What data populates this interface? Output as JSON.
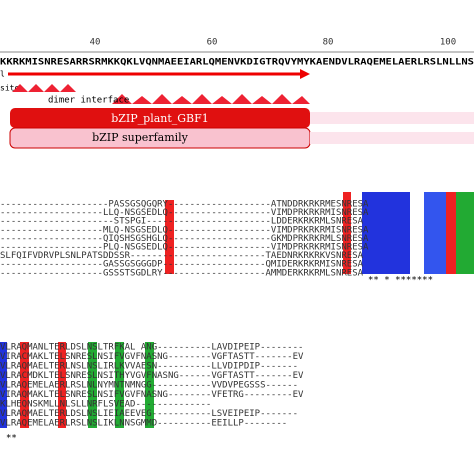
{
  "ruler": [
    "40",
    "60",
    "80",
    "100"
  ],
  "query": "KKRKMISNRESARRSRMKKQKLVQNMAEEIARLQMENVKDIGTRQVYMYKAENDVLRAQEMELAERLRSLNLLNS",
  "features": {
    "left_a": "l",
    "left_b": "site",
    "dimer": "dimer interface",
    "domain": "bZIP_plant_GBF1",
    "superfamily": "bZIP superfamily"
  },
  "block1": [
    "--------------------PASSGSQGQRY-------------------ATNDDRKRKRMESNRESA",
    "-------------------LLQ-NSGSEDLQ-------------------VIMDPRKRKRMISNRESA",
    "---------------------STSPGI-----------------------LDDERKRKRMLSNRESA",
    "-------------------MLQ-NSGSEDLQ-------------------VIMDPRKRKRMISNRESA",
    "-------------------QIQSHSGSHGLQ-------------------GKMDPRKRKRMLSNRESA",
    "-------------------PLQ-NSGSEDLQ-------------------VIMDPRKRKRMISNRESA",
    "SLFQIFVDRVPLSNLPATSDDSSR-------------------------TAEDNRKRKRKVSNRESA",
    "-------------------GASSGSGGGDP-------------------QMIDERKRKRMISNRESA",
    "-------------------GSSSTSGDLRY-------------------AMMDERKRKRMLSNRESA"
  ],
  "stars1": "** *  *******",
  "block2": [
    "VLRAQMANLTERLDSLNSLTRFKAL ANG----------LAVDIPEIP--------",
    "VIRACMAKLTELSNRESLNSIFVGVFNASNG--------VGFTASTT-------EV",
    "VLRAQMAELTERLNSLNSLIRLKVVAESN----------LLVDIPDIP-------",
    "VLRACMDKLTELSNRESLNSITHYVGVFNASNG------VGFTASTT-------EV",
    "VLRAQEMELAERLRSLNLNYMNTNMNGG-----------VVDVPEGSSS------",
    "VIRAQMAKLTELSNRESLNSIFVGVFNASNG--------VFETRG---------EV",
    "KLHEQNSKMLLNLSLLNRFLSVEAD--------------",
    "VLRAQMAELTERLDSLNSLIEIAEEVEG-----------LSVEIPEIP-------",
    "VLRAQEMELAERLRSLNSLIKLNNSGMMD----------EEILLP--------"
  ],
  "stars2": "**"
}
